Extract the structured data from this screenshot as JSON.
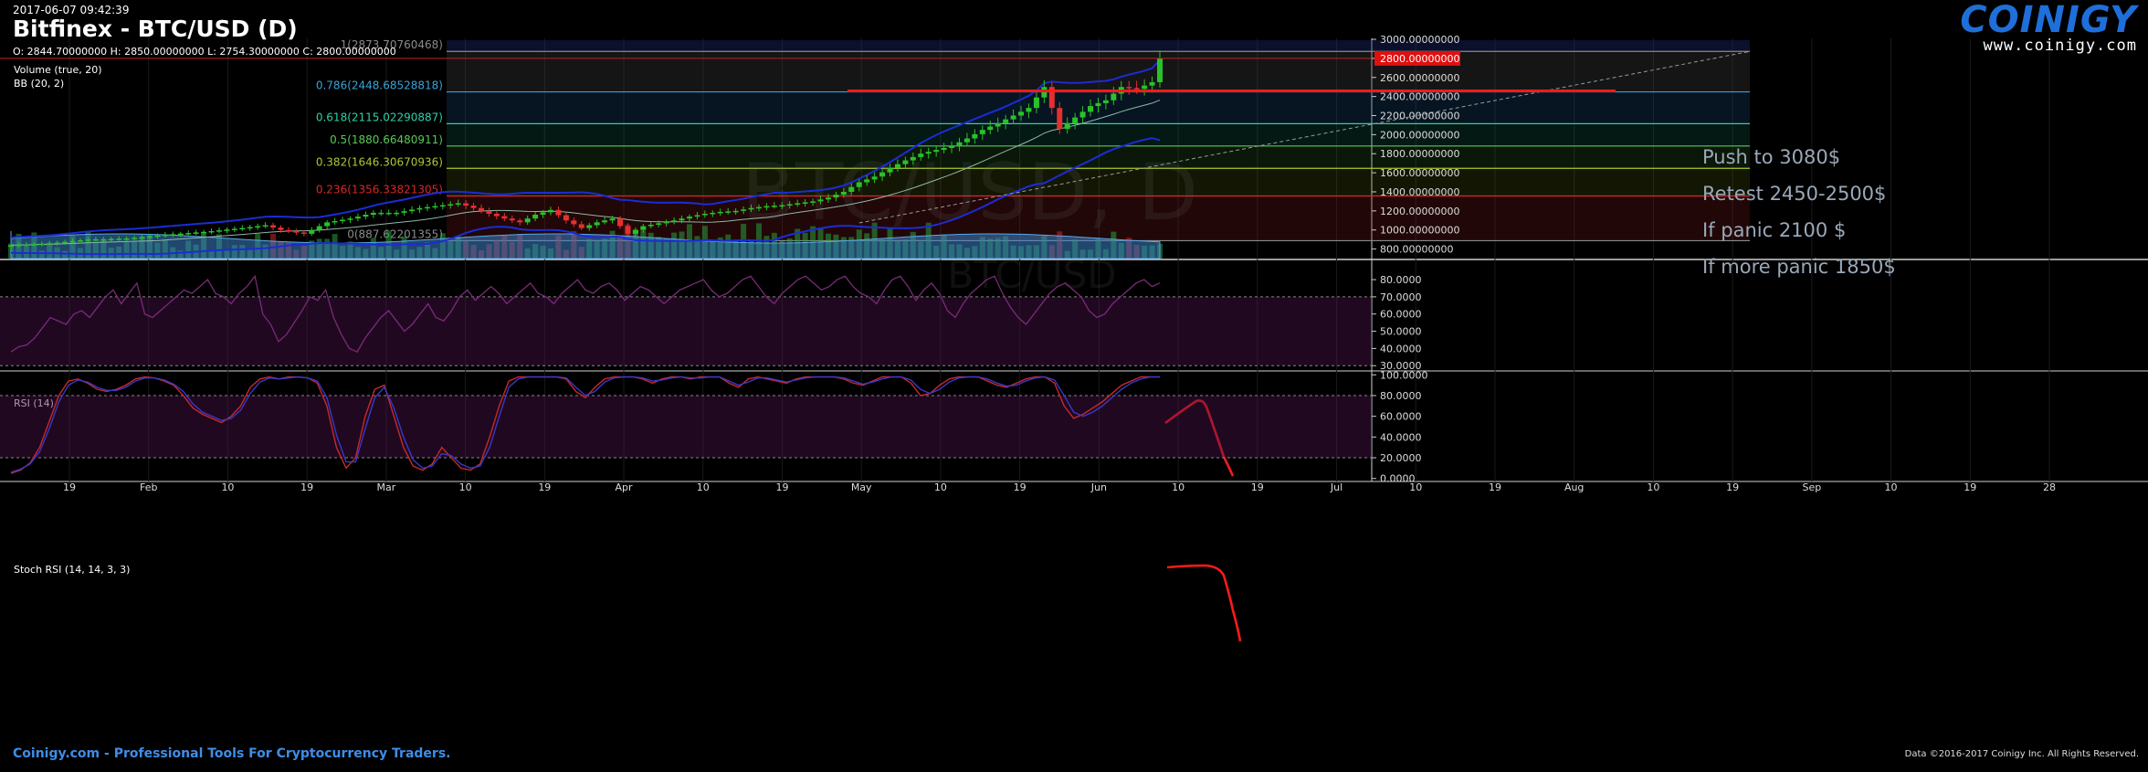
{
  "header": {
    "timestamp": "2017-06-07 09:42:39",
    "title": "Bitfinex - BTC/USD (D)",
    "ohlc": "O: 2844.70000000 H: 2850.00000000 L: 2754.30000000 C: 2800.00000000"
  },
  "logo": {
    "name": "COINIGY",
    "url": "www.coinigy.com"
  },
  "footer": {
    "left": "Coinigy.com - Professional Tools For Cryptocurrency Traders.",
    "right": "Data ©2016-2017 Coinigy Inc. All Rights Reserved."
  },
  "watermark": {
    "main": "BTC/USD, D",
    "sub": "BTC/USD"
  },
  "colors": {
    "background": "#000000",
    "candle_up": "#29c229",
    "candle_down": "#e53030",
    "bb_band": "#1b2cd6",
    "rsi_line": "#7a2a7a",
    "stoch_k": "#c62a2a",
    "stoch_d": "#3a38c8",
    "fib_top": "#8a8a8a",
    "fib_0786": "#3aa3d8",
    "fib_0618": "#2fd0a8",
    "fib_05": "#58c858",
    "fib_0382": "#a8c830",
    "fib_0236": "#d82828",
    "fib_0": "#8a8a8a",
    "annotation_red": "#ff1a1a",
    "text_note": "#9aa8b8"
  },
  "chart_data": [
    {
      "type": "candlestick",
      "panel": "price",
      "indicators": [
        "Volume (true, 20)",
        "BB (20, 2)"
      ],
      "y_ticks": [
        "3000.00000000",
        "2800.00000000",
        "2600.00000000",
        "2400.00000000",
        "2200.00000000",
        "2000.00000000",
        "1800.00000000",
        "1600.00000000",
        "1400.00000000",
        "1200.00000000",
        "1000.00000000",
        "800.00000000"
      ],
      "ylim": [
        700,
        3010
      ],
      "current_price": 2800,
      "current_price_label": "2800.00000000",
      "x_ticks": [
        "19",
        "Feb",
        "10",
        "19",
        "Mar",
        "10",
        "19",
        "Apr",
        "10",
        "19",
        "May",
        "10",
        "19",
        "Jun",
        "10",
        "19",
        "Jul",
        "10",
        "19",
        "Aug",
        "10",
        "19",
        "Sep",
        "10",
        "19",
        "28"
      ],
      "close_path": [
        [
          0,
          840
        ],
        [
          5,
          860
        ],
        [
          10,
          900
        ],
        [
          15,
          910
        ],
        [
          20,
          950
        ],
        [
          25,
          980
        ],
        [
          30,
          1020
        ],
        [
          33,
          1050
        ],
        [
          35,
          1000
        ],
        [
          38,
          960
        ],
        [
          41,
          1080
        ],
        [
          44,
          1120
        ],
        [
          47,
          1180
        ],
        [
          50,
          1180
        ],
        [
          53,
          1230
        ],
        [
          56,
          1260
        ],
        [
          58,
          1280
        ],
        [
          60,
          1230
        ],
        [
          62,
          1170
        ],
        [
          64,
          1120
        ],
        [
          66,
          1080
        ],
        [
          68,
          1160
        ],
        [
          70,
          1210
        ],
        [
          72,
          1100
        ],
        [
          74,
          1020
        ],
        [
          76,
          1080
        ],
        [
          78,
          1120
        ],
        [
          80,
          960
        ],
        [
          82,
          1040
        ],
        [
          84,
          1070
        ],
        [
          86,
          1100
        ],
        [
          88,
          1140
        ],
        [
          90,
          1170
        ],
        [
          92,
          1190
        ],
        [
          94,
          1200
        ],
        [
          96,
          1230
        ],
        [
          98,
          1250
        ],
        [
          100,
          1260
        ],
        [
          102,
          1280
        ],
        [
          104,
          1300
        ],
        [
          106,
          1340
        ],
        [
          108,
          1400
        ],
        [
          110,
          1500
        ],
        [
          112,
          1560
        ],
        [
          114,
          1650
        ],
        [
          116,
          1730
        ],
        [
          118,
          1800
        ],
        [
          120,
          1840
        ],
        [
          122,
          1880
        ],
        [
          124,
          1960
        ],
        [
          126,
          2050
        ],
        [
          128,
          2120
        ],
        [
          130,
          2200
        ],
        [
          132,
          2280
        ],
        [
          134,
          2500
        ],
        [
          136,
          2060
        ],
        [
          138,
          2180
        ],
        [
          140,
          2300
        ],
        [
          142,
          2360
        ],
        [
          144,
          2500
        ],
        [
          146,
          2480
        ],
        [
          148,
          2550
        ],
        [
          149,
          2800
        ]
      ],
      "series": [
        {
          "name": "Volume (true, 20)"
        },
        {
          "name": "BB (20, 2)"
        }
      ],
      "fibonacci": [
        {
          "level": 1,
          "label": "1(2873.70760468)",
          "price": 2873.70760468
        },
        {
          "level": 0.786,
          "label": "0.786(2448.68528818)",
          "price": 2448.68528818
        },
        {
          "level": 0.618,
          "label": "0.618(2115.02290887)",
          "price": 2115.02290887
        },
        {
          "level": 0.5,
          "label": "0.5(1880.66480911)",
          "price": 1880.66480911
        },
        {
          "level": 0.382,
          "label": "0.382(1646.30670936)",
          "price": 1646.30670936
        },
        {
          "level": 0.236,
          "label": "0.236(1356.33821305)",
          "price": 1356.33821305
        },
        {
          "level": 0,
          "label": "0(887.62201355)",
          "price": 887.62201355
        }
      ],
      "annotations": [
        "Push to 3080$",
        "Retest 2450-2500$",
        "If panic 2100 $",
        "If more panic 1850$"
      ]
    },
    {
      "type": "line",
      "panel": "rsi",
      "title": "RSI (14)",
      "y_ticks": [
        "80.0000",
        "70.0000",
        "60.0000",
        "50.0000",
        "40.0000",
        "30.0000"
      ],
      "ylim": [
        28,
        88
      ],
      "bands": [
        30,
        70
      ],
      "values": [
        38,
        41,
        42,
        46,
        52,
        58,
        56,
        54,
        60,
        62,
        58,
        64,
        70,
        74,
        66,
        72,
        78,
        60,
        58,
        62,
        66,
        70,
        74,
        72,
        76,
        80,
        72,
        70,
        66,
        72,
        76,
        82,
        60,
        54,
        44,
        48,
        55,
        62,
        70,
        68,
        74,
        58,
        48,
        40,
        38,
        46,
        52,
        58,
        62,
        56,
        50,
        54,
        60,
        66,
        58,
        56,
        62,
        70,
        74,
        68,
        72,
        76,
        72,
        66,
        70,
        74,
        78,
        72,
        70,
        66,
        72,
        76,
        80,
        74,
        72,
        76,
        78,
        74,
        68,
        72,
        76,
        74,
        70,
        66,
        70,
        74,
        76,
        78,
        80,
        74,
        70,
        72,
        76,
        80,
        82,
        76,
        70,
        66,
        72,
        76,
        80,
        82,
        78,
        74,
        76,
        80,
        82,
        76,
        72,
        70,
        66,
        74,
        80,
        82,
        76,
        68,
        74,
        78,
        72,
        62,
        58,
        66,
        72,
        76,
        80,
        82,
        72,
        64,
        58,
        54,
        60,
        66,
        72,
        76,
        78,
        74,
        70,
        62,
        58,
        60,
        66,
        70,
        74,
        78,
        80,
        76,
        78
      ]
    },
    {
      "type": "line",
      "panel": "stoch_rsi",
      "title": "Stoch RSI (14, 14, 3, 3)",
      "y_ticks": [
        "100.0000",
        "80.0000",
        "60.0000",
        "40.0000",
        "20.0000",
        "0.0000"
      ],
      "ylim": [
        -2,
        102
      ],
      "bands": [
        20,
        80
      ],
      "series": [
        {
          "values": [
            5,
            8,
            15,
            30,
            55,
            80,
            94,
            96,
            92,
            86,
            84,
            86,
            90,
            96,
            98,
            97,
            94,
            90,
            80,
            68,
            62,
            58,
            54,
            60,
            70,
            88,
            96,
            98,
            96,
            98,
            98,
            97,
            92,
            70,
            30,
            10,
            20,
            60,
            86,
            90,
            60,
            30,
            12,
            8,
            14,
            30,
            20,
            10,
            8,
            14,
            40,
            70,
            94,
            98,
            98,
            98,
            98,
            98,
            96,
            84,
            78,
            88,
            96,
            98,
            98,
            98,
            96,
            92,
            96,
            98,
            98,
            96,
            98,
            98,
            98,
            92,
            88,
            96,
            98,
            96,
            94,
            92,
            96,
            98,
            98,
            98,
            98,
            96,
            92,
            90,
            94,
            98,
            98,
            98,
            92,
            80,
            82,
            90,
            96,
            98,
            98,
            98,
            94,
            90,
            88,
            92,
            96,
            98,
            98,
            92,
            70,
            58,
            62,
            68,
            74,
            82,
            90,
            94,
            98,
            98,
            98
          ]
        },
        {
          "values": [
            6,
            9,
            14,
            26,
            48,
            74,
            90,
            95,
            93,
            88,
            85,
            85,
            88,
            94,
            97,
            97,
            95,
            91,
            84,
            72,
            64,
            60,
            56,
            58,
            66,
            82,
            93,
            97,
            96,
            97,
            98,
            97,
            94,
            78,
            42,
            16,
            16,
            48,
            78,
            88,
            68,
            40,
            18,
            10,
            12,
            24,
            22,
            14,
            10,
            12,
            30,
            60,
            88,
            96,
            98,
            98,
            98,
            98,
            97,
            88,
            80,
            84,
            93,
            97,
            98,
            98,
            97,
            94,
            95,
            97,
            98,
            97,
            97,
            98,
            98,
            94,
            90,
            93,
            97,
            97,
            95,
            93,
            95,
            97,
            98,
            98,
            98,
            97,
            94,
            91,
            93,
            96,
            98,
            98,
            95,
            86,
            82,
            86,
            93,
            97,
            98,
            98,
            96,
            92,
            89,
            90,
            94,
            97,
            98,
            95,
            80,
            64,
            60,
            64,
            70,
            78,
            86,
            92,
            96,
            98,
            98
          ]
        }
      ]
    }
  ]
}
